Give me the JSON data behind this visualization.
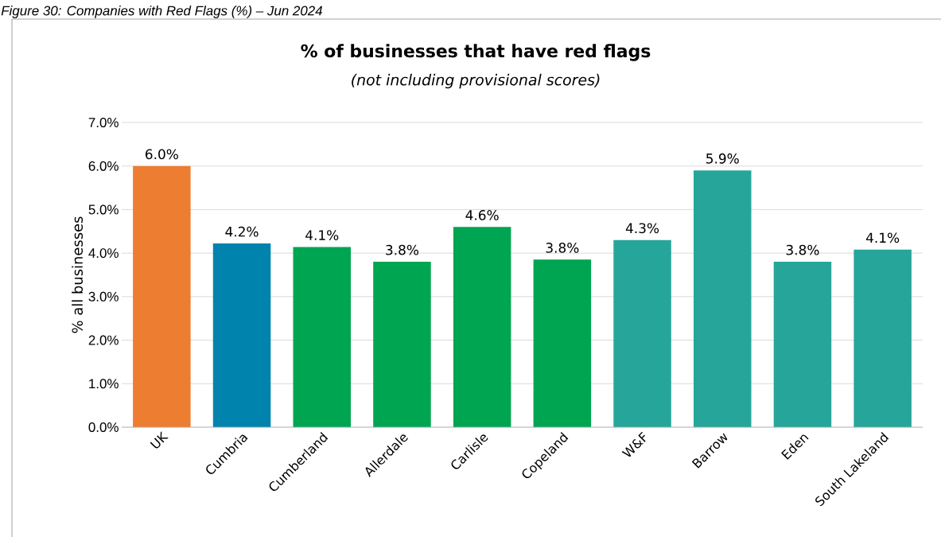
{
  "chart_data": {
    "type": "bar",
    "title": "% of businesses that have red flags",
    "subtitle": "(not including provisional scores)",
    "ylabel": "% all businesses",
    "annotations": [
      "Figure 30: Companies with Red Flags (%) – Jun 2024"
    ],
    "categories": [
      "UK",
      "Cumbria",
      "Cumberland",
      "Allerdale",
      "Carlisle",
      "Copeland",
      "W&F",
      "Barrow",
      "Eden",
      "South Lakeland"
    ],
    "values": [
      6.0,
      4.22,
      4.14,
      3.8,
      4.6,
      3.85,
      4.3,
      5.9,
      3.8,
      4.08
    ],
    "value_labels": [
      "6.0%",
      "4.2%",
      "4.1%",
      "3.8%",
      "4.6%",
      "3.8%",
      "4.3%",
      "5.9%",
      "3.8%",
      "4.1%"
    ],
    "colors": [
      "#ed7d31",
      "#0083ad",
      "#00a551",
      "#00a551",
      "#00a551",
      "#00a551",
      "#26a69a",
      "#26a69a",
      "#26a69a",
      "#26a69a"
    ],
    "ylim": [
      0,
      7
    ],
    "yticks": [
      {
        "value": 0,
        "label": "0.0%"
      },
      {
        "value": 1,
        "label": "1.0%"
      },
      {
        "value": 2,
        "label": "2.0%"
      },
      {
        "value": 3,
        "label": "3.0%"
      },
      {
        "value": 4,
        "label": "4.0%"
      },
      {
        "value": 5,
        "label": "5.0%"
      },
      {
        "value": 6,
        "label": "6.0%"
      },
      {
        "value": 7,
        "label": "7.0%"
      }
    ],
    "grid": "y"
  }
}
